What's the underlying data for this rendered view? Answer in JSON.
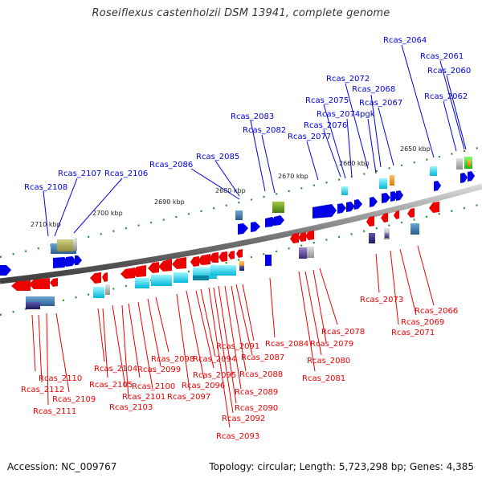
{
  "title": "Roseiflexus castenholzii DSM 13941, complete genome",
  "footer": {
    "accession": "Accession: NC_009767",
    "topology": "Topology: circular; Length: 5,723,298 bp; Genes: 4,385"
  },
  "colors": {
    "forward": "#0000e6",
    "reverse": "#ee0000",
    "backbone": "#8a8a8a",
    "tick": "#2a8a2a"
  },
  "ticks": [
    "2710 kbp",
    "2700 kbp",
    "2690 kbp",
    "2680 kbp",
    "2670 kbp",
    "2660 kbp",
    "2650 kbp"
  ],
  "labels_top": [
    "Rcas_2108",
    "Rcas_2107",
    "Rcas_2106",
    "Rcas_2086",
    "Rcas_2085",
    "Rcas_2083",
    "Rcas_2082",
    "Rcas_2077",
    "Rcas_2076",
    "Rcas_2075",
    "Rcas_2074",
    "Rcas_2072",
    "Rcas_2068",
    "pgk",
    "Rcas_2067",
    "Rcas_2064",
    "Rcas_2061",
    "Rcas_2060",
    "Rcas_2062"
  ],
  "labels_bottom": [
    "Rcas_2110",
    "Rcas_2112",
    "Rcas_2109",
    "Rcas_2111",
    "Rcas_2104",
    "Rcas_2105",
    "Rcas_2100",
    "Rcas_2103",
    "Rcas_2101",
    "Rcas_2099",
    "Rcas_2098",
    "Rcas_2097",
    "Rcas_2096",
    "Rcas_2095",
    "Rcas_2094",
    "Rcas_2093",
    "Rcas_2092",
    "Rcas_2091",
    "Rcas_2090",
    "Rcas_2089",
    "Rcas_2088",
    "Rcas_2087",
    "Rcas_2084",
    "Rcas_2081",
    "Rcas_2080",
    "Rcas_2079",
    "Rcas_2078",
    "Rcas_2073",
    "Rcas_2071",
    "Rcas_2069",
    "Rcas_2066"
  ]
}
